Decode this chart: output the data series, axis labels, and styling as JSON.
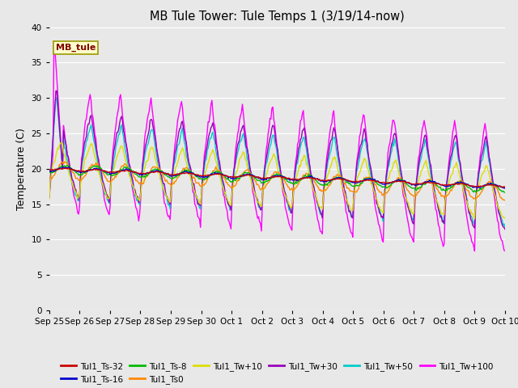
{
  "title": "MB Tule Tower: Tule Temps 1 (3/19/14-now)",
  "ylabel": "Temperature (C)",
  "ylim": [
    0,
    40
  ],
  "yticks": [
    0,
    5,
    10,
    15,
    20,
    25,
    30,
    35,
    40
  ],
  "bg_color": "#e8e8e8",
  "legend_label": "MB_tule",
  "series_colors": {
    "Tul1_Ts-32": "#cc0000",
    "Tul1_Ts-16": "#0000cc",
    "Tul1_Ts-8": "#00bb00",
    "Tul1_Ts0": "#ff8800",
    "Tul1_Tw+10": "#dddd00",
    "Tul1_Tw+30": "#9900bb",
    "Tul1_Tw+50": "#00cccc",
    "Tul1_Tw+100": "#ff00ff"
  },
  "x_tick_labels": [
    "Sep 25",
    "Sep 26",
    "Sep 27",
    "Sep 28",
    "Sep 29",
    "Sep 30",
    "Oct 1",
    "Oct 2",
    "Oct 3",
    "Oct 4",
    "Oct 5",
    "Oct 6",
    "Oct 7",
    "Oct 8",
    "Oct 9",
    "Oct 10"
  ],
  "num_points": 480
}
